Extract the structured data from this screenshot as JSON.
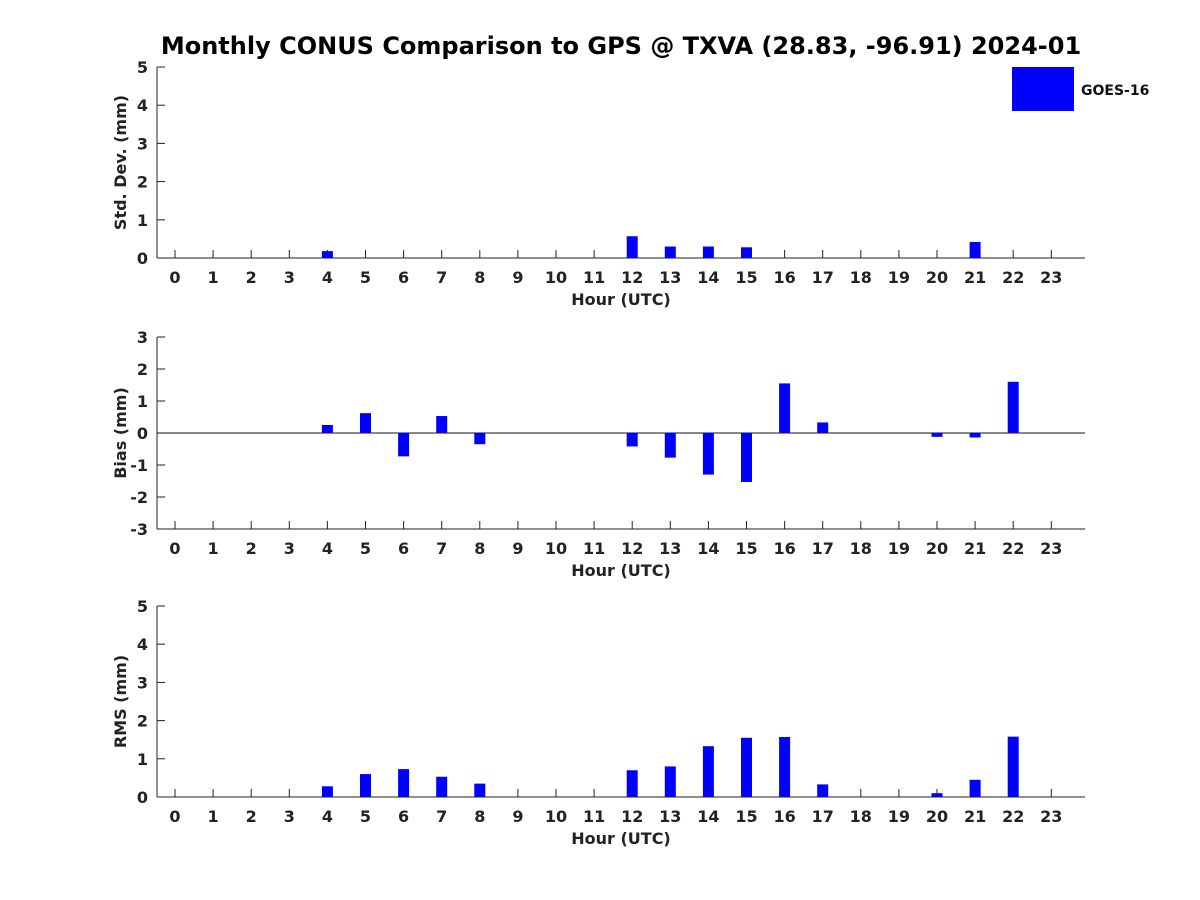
{
  "figure": {
    "title": "Monthly CONUS Comparison to GPS @ TXVA (28.83, -96.91) 2024-01",
    "legend": {
      "label": "GOES-16",
      "color": "#0000ff"
    }
  },
  "chart_data": [
    {
      "type": "bar",
      "title": "",
      "xlabel": "Hour (UTC)",
      "ylabel": "Std. Dev. (mm)",
      "ylim": [
        0,
        5
      ],
      "yticks": [
        0,
        1,
        2,
        3,
        4,
        5
      ],
      "categories": [
        "0",
        "1",
        "2",
        "3",
        "4",
        "5",
        "6",
        "7",
        "8",
        "9",
        "10",
        "11",
        "12",
        "13",
        "14",
        "15",
        "16",
        "17",
        "18",
        "19",
        "20",
        "21",
        "22",
        "23"
      ],
      "series": [
        {
          "name": "GOES-16",
          "color": "#0000ff",
          "values": [
            null,
            null,
            null,
            null,
            0.18,
            null,
            null,
            null,
            null,
            null,
            null,
            null,
            0.57,
            0.3,
            0.3,
            0.28,
            null,
            null,
            null,
            null,
            null,
            0.42,
            null,
            null
          ]
        }
      ],
      "zero_line": false,
      "grid": false
    },
    {
      "type": "bar",
      "title": "",
      "xlabel": "Hour (UTC)",
      "ylabel": "Bias (mm)",
      "ylim": [
        -3,
        3
      ],
      "yticks": [
        -3,
        -2,
        -1,
        0,
        1,
        2,
        3
      ],
      "categories": [
        "0",
        "1",
        "2",
        "3",
        "4",
        "5",
        "6",
        "7",
        "8",
        "9",
        "10",
        "11",
        "12",
        "13",
        "14",
        "15",
        "16",
        "17",
        "18",
        "19",
        "20",
        "21",
        "22",
        "23"
      ],
      "series": [
        {
          "name": "GOES-16",
          "color": "#0000ff",
          "values": [
            null,
            null,
            null,
            null,
            0.25,
            0.62,
            -0.73,
            0.53,
            -0.35,
            null,
            null,
            null,
            -0.42,
            -0.77,
            -1.3,
            -1.53,
            1.55,
            0.33,
            null,
            null,
            -0.12,
            -0.14,
            1.6,
            null
          ]
        }
      ],
      "zero_line": true,
      "grid": false
    },
    {
      "type": "bar",
      "title": "",
      "xlabel": "Hour (UTC)",
      "ylabel": "RMS (mm)",
      "ylim": [
        0,
        5
      ],
      "yticks": [
        0,
        1,
        2,
        3,
        4,
        5
      ],
      "categories": [
        "0",
        "1",
        "2",
        "3",
        "4",
        "5",
        "6",
        "7",
        "8",
        "9",
        "10",
        "11",
        "12",
        "13",
        "14",
        "15",
        "16",
        "17",
        "18",
        "19",
        "20",
        "21",
        "22",
        "23"
      ],
      "series": [
        {
          "name": "GOES-16",
          "color": "#0000ff",
          "values": [
            null,
            null,
            null,
            null,
            0.28,
            0.6,
            0.73,
            0.53,
            0.35,
            null,
            null,
            null,
            0.7,
            0.8,
            1.33,
            1.55,
            1.57,
            0.33,
            null,
            null,
            0.1,
            0.45,
            1.58,
            null
          ]
        }
      ],
      "zero_line": false,
      "grid": false
    }
  ]
}
